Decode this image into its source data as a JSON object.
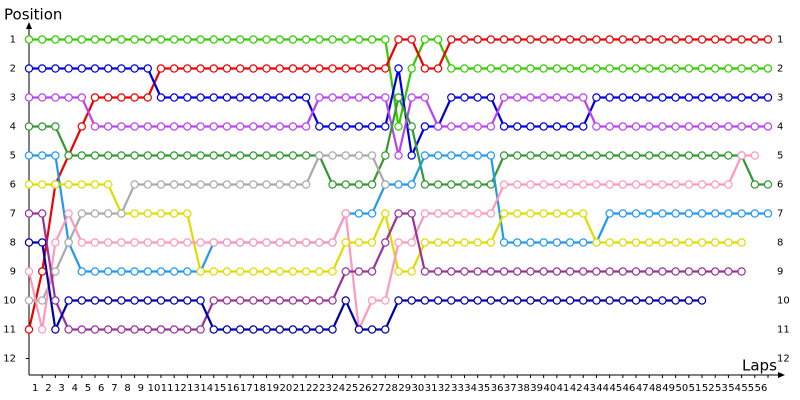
{
  "chart_data": {
    "type": "line",
    "y_label": "Position",
    "x_label": "Laps",
    "x": [
      0,
      1,
      2,
      3,
      4,
      5,
      6,
      7,
      8,
      9,
      10,
      11,
      12,
      13,
      14,
      15,
      16,
      17,
      18,
      19,
      20,
      21,
      22,
      23,
      24,
      25,
      26,
      27,
      28,
      29,
      30,
      31,
      32,
      33,
      34,
      35,
      36,
      37,
      38,
      39,
      40,
      41,
      42,
      43,
      44,
      45,
      46,
      47,
      48,
      49,
      50,
      51,
      52,
      53,
      54,
      55,
      56
    ],
    "xlim": [
      0,
      56
    ],
    "xticks": [
      1,
      2,
      3,
      4,
      5,
      6,
      7,
      8,
      9,
      10,
      11,
      12,
      13,
      14,
      15,
      16,
      17,
      18,
      19,
      20,
      21,
      22,
      23,
      24,
      25,
      26,
      27,
      28,
      29,
      30,
      31,
      32,
      33,
      34,
      35,
      36,
      37,
      38,
      39,
      40,
      41,
      42,
      43,
      44,
      45,
      46,
      47,
      48,
      49,
      50,
      51,
      52,
      53,
      54,
      55,
      56
    ],
    "ylim": [
      12.5,
      0.5
    ],
    "yticks": [
      1,
      2,
      3,
      4,
      5,
      6,
      7,
      8,
      9,
      10,
      11,
      12
    ],
    "series": [
      {
        "color": "#33cc00",
        "values": [
          1,
          1,
          1,
          1,
          1,
          1,
          1,
          1,
          1,
          1,
          1,
          1,
          1,
          1,
          1,
          1,
          1,
          1,
          1,
          1,
          1,
          1,
          1,
          1,
          1,
          1,
          1,
          1,
          4,
          2,
          1,
          1,
          2,
          2,
          2,
          2,
          2,
          2,
          2,
          2,
          2,
          2,
          2,
          2,
          2,
          2,
          2,
          2,
          2,
          2,
          2,
          2,
          2,
          2,
          2,
          2,
          2
        ]
      },
      {
        "color": "#ee0000",
        "values": [
          11,
          9,
          6,
          5,
          4,
          3,
          3,
          3,
          3,
          3,
          2,
          2,
          2,
          2,
          2,
          2,
          2,
          2,
          2,
          2,
          2,
          2,
          2,
          2,
          2,
          2,
          2,
          2,
          1,
          1,
          2,
          2,
          1,
          1,
          1,
          1,
          1,
          1,
          1,
          1,
          1,
          1,
          1,
          1,
          1,
          1,
          1,
          1,
          1,
          1,
          1,
          1,
          1,
          1,
          1,
          1,
          1
        ]
      },
      {
        "color": "#0000dd",
        "values": [
          2,
          2,
          2,
          2,
          2,
          2,
          2,
          2,
          2,
          2,
          3,
          3,
          3,
          3,
          3,
          3,
          3,
          3,
          3,
          3,
          3,
          3,
          4,
          4,
          4,
          4,
          4,
          4,
          2,
          5,
          4,
          4,
          3,
          3,
          3,
          3,
          4,
          4,
          4,
          4,
          4,
          4,
          4,
          3,
          3,
          3,
          3,
          3,
          3,
          3,
          3,
          3,
          3,
          3,
          3,
          3,
          3
        ]
      },
      {
        "color": "#bb44ee",
        "values": [
          3,
          3,
          3,
          3,
          3,
          4,
          4,
          4,
          4,
          4,
          4,
          4,
          4,
          4,
          4,
          4,
          4,
          4,
          4,
          4,
          4,
          4,
          3,
          3,
          3,
          3,
          3,
          3,
          5,
          3,
          3,
          4,
          4,
          4,
          4,
          4,
          3,
          3,
          3,
          3,
          3,
          3,
          3,
          4,
          4,
          4,
          4,
          4,
          4,
          4,
          4,
          4,
          4,
          4,
          4,
          4,
          4
        ]
      },
      {
        "color": "#339933",
        "values": [
          4,
          4,
          4,
          5,
          5,
          5,
          5,
          5,
          5,
          5,
          5,
          5,
          5,
          5,
          5,
          5,
          5,
          5,
          5,
          5,
          5,
          5,
          5,
          6,
          6,
          6,
          6,
          5,
          3,
          4,
          6,
          6,
          6,
          6,
          6,
          6,
          5,
          5,
          5,
          5,
          5,
          5,
          5,
          5,
          5,
          5,
          5,
          5,
          5,
          5,
          5,
          5,
          5,
          5,
          5,
          6,
          6
        ]
      },
      {
        "color": "#2299ee",
        "values": [
          5,
          5,
          5,
          8,
          9,
          9,
          9,
          9,
          9,
          9,
          9,
          9,
          9,
          9,
          8,
          8,
          8,
          8,
          8,
          8,
          8,
          8,
          8,
          8,
          7,
          7,
          7,
          6,
          6,
          6,
          5,
          5,
          5,
          5,
          5,
          5,
          8,
          8,
          8,
          8,
          8,
          8,
          8,
          8,
          7,
          7,
          7,
          7,
          7,
          7,
          7,
          7,
          7,
          7,
          7,
          7,
          7
        ]
      },
      {
        "color": "#dddd00",
        "values": [
          6,
          6,
          6,
          6,
          6,
          6,
          6,
          7,
          7,
          7,
          7,
          7,
          7,
          9,
          9,
          9,
          9,
          9,
          9,
          9,
          9,
          9,
          9,
          9,
          8,
          8,
          8,
          7,
          9,
          9,
          8,
          8,
          8,
          8,
          8,
          8,
          7,
          7,
          7,
          7,
          7,
          7,
          7,
          8,
          8,
          8,
          8,
          8,
          8,
          8,
          8,
          8,
          8,
          8,
          8,
          null,
          null
        ]
      },
      {
        "color": "#aaaaaa",
        "values": [
          10,
          10,
          9,
          8,
          7,
          7,
          7,
          7,
          6,
          6,
          6,
          6,
          6,
          6,
          6,
          6,
          6,
          6,
          6,
          6,
          6,
          6,
          5,
          5,
          5,
          5,
          5,
          6,
          null,
          null,
          null,
          null,
          null,
          null,
          null,
          null,
          null,
          null,
          null,
          null,
          null,
          null,
          null,
          null,
          null,
          null,
          null,
          null,
          null,
          null,
          null,
          null,
          null,
          null,
          null,
          null,
          null
        ]
      },
      {
        "color": "#ff99bb",
        "values": [
          9,
          11,
          8,
          7,
          8,
          8,
          8,
          8,
          8,
          8,
          8,
          8,
          8,
          8,
          8,
          8,
          8,
          8,
          8,
          8,
          8,
          8,
          8,
          8,
          7,
          11,
          10,
          10,
          8,
          8,
          7,
          7,
          7,
          7,
          7,
          7,
          6,
          6,
          6,
          6,
          6,
          6,
          6,
          6,
          6,
          6,
          6,
          6,
          6,
          6,
          6,
          6,
          6,
          6,
          5,
          5,
          null
        ]
      },
      {
        "color": "#993399",
        "values": [
          7,
          7,
          10,
          11,
          11,
          11,
          11,
          11,
          11,
          11,
          11,
          11,
          11,
          11,
          10,
          10,
          10,
          10,
          10,
          10,
          10,
          10,
          10,
          10,
          9,
          9,
          9,
          8,
          7,
          7,
          9,
          9,
          9,
          9,
          9,
          9,
          9,
          9,
          9,
          9,
          9,
          9,
          9,
          9,
          9,
          9,
          9,
          9,
          9,
          9,
          9,
          9,
          9,
          9,
          9,
          null,
          null
        ]
      },
      {
        "color": "#0000aa",
        "values": [
          8,
          8,
          11,
          10,
          10,
          10,
          10,
          10,
          10,
          10,
          10,
          10,
          10,
          10,
          11,
          11,
          11,
          11,
          11,
          11,
          11,
          11,
          11,
          11,
          10,
          11,
          11,
          11,
          10,
          10,
          10,
          10,
          10,
          10,
          10,
          10,
          10,
          10,
          10,
          10,
          10,
          10,
          10,
          10,
          10,
          10,
          10,
          10,
          10,
          10,
          10,
          10,
          null,
          null,
          null,
          null,
          null
        ]
      }
    ]
  }
}
